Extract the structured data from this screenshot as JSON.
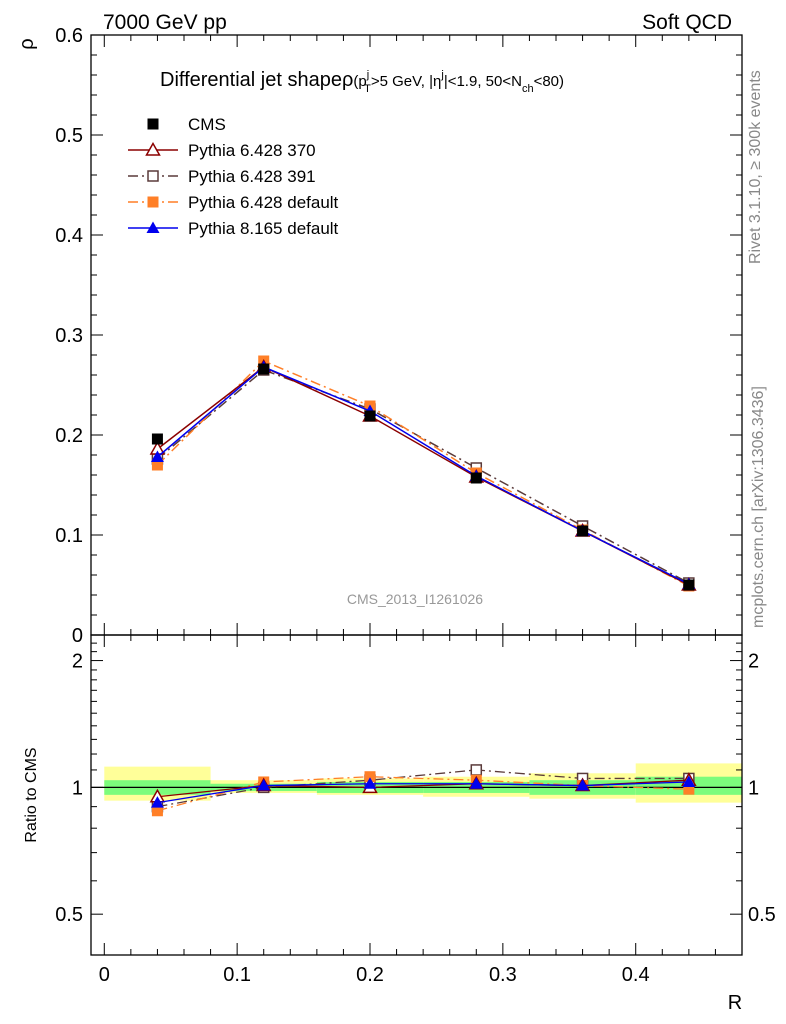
{
  "header": {
    "left": "7000 GeV pp",
    "right": "Soft QCD"
  },
  "side_labels": {
    "rivet": "Rivet 3.1.10, ≥ 300k events",
    "mcplots": "mcplots.cern.ch [arXiv:1306.3436]"
  },
  "watermark": "CMS_2013_I1261026",
  "colors": {
    "cms": "#000000",
    "p370": "#8b0000",
    "p391": "#5a3a3a",
    "p6def": "#ff7f27",
    "p8def": "#0000ee",
    "band_inner": "#7cfc7c",
    "band_outer": "#ffff99"
  },
  "chart_data": [
    {
      "id": "main",
      "type": "line",
      "title": "Differential jet shapeρ",
      "title_cut": {
        "pt": "p",
        "pt_sup": "j",
        "pt_sub": "T",
        "pt_rest": ">5 GeV, |",
        "eta": "η",
        "eta_sup": "j",
        "eta_rest": "|<1.9, 50<N",
        "n_sub": "ch",
        "n_rest": "<80)",
        "open": "("
      },
      "ylabel": "ρ",
      "xlim": [
        -0.01,
        0.48
      ],
      "ylim": [
        0,
        0.6
      ],
      "y_ticks": [
        0,
        0.1,
        0.2,
        0.3,
        0.4,
        0.5,
        0.6
      ],
      "y_tick_labels": [
        "0",
        "0.1",
        "0.2",
        "0.3",
        "0.4",
        "0.5",
        "0.6"
      ],
      "x": [
        0.04,
        0.12,
        0.2,
        0.28,
        0.36,
        0.44
      ],
      "series": [
        {
          "key": "cms",
          "name": "CMS",
          "marker": "square-filled",
          "line": "none",
          "values": [
            0.196,
            0.266,
            0.219,
            0.157,
            0.104,
            0.05
          ]
        },
        {
          "key": "p370",
          "name": "Pythia 6.428 370",
          "marker": "triangle-open",
          "line": "solid",
          "values": [
            0.186,
            0.268,
            0.219,
            0.158,
            0.104,
            0.05
          ]
        },
        {
          "key": "p391",
          "name": "Pythia 6.428 391",
          "marker": "square-open",
          "line": "dashdot",
          "values": [
            0.176,
            0.265,
            0.226,
            0.167,
            0.109,
            0.052
          ]
        },
        {
          "key": "p6def",
          "name": "Pythia 6.428 default",
          "marker": "square-filled",
          "line": "dashdot",
          "values": [
            0.17,
            0.274,
            0.229,
            0.162,
            0.105,
            0.049
          ]
        },
        {
          "key": "p8def",
          "name": "Pythia 8.165 default",
          "marker": "triangle-filled",
          "line": "solid",
          "values": [
            0.178,
            0.268,
            0.224,
            0.159,
            0.104,
            0.051
          ]
        }
      ]
    },
    {
      "id": "ratio",
      "type": "line",
      "ylabel": "Ratio to CMS",
      "xlabel": "R",
      "xlim": [
        -0.01,
        0.48
      ],
      "ylim": [
        0.4,
        2.3
      ],
      "y_tick_labels_left": [
        "0.5",
        "1",
        "2"
      ],
      "y_tick_labels_right": [
        "0.5",
        "1",
        "2"
      ],
      "y_tick_values": [
        0.5,
        1,
        2
      ],
      "x_ticks": [
        0,
        0.1,
        0.2,
        0.3,
        0.4
      ],
      "x_tick_labels": [
        "0",
        "0.1",
        "0.2",
        "0.3",
        "0.4"
      ],
      "x": [
        0.04,
        0.12,
        0.2,
        0.28,
        0.36,
        0.44
      ],
      "bands": [
        {
          "x_from": 0.0,
          "x_to": 0.08,
          "inner": [
            0.96,
            1.04
          ],
          "outer": [
            0.93,
            1.12
          ]
        },
        {
          "x_from": 0.08,
          "x_to": 0.16,
          "inner": [
            0.98,
            1.02
          ],
          "outer": [
            0.97,
            1.04
          ]
        },
        {
          "x_from": 0.16,
          "x_to": 0.24,
          "inner": [
            0.97,
            1.03
          ],
          "outer": [
            0.96,
            1.05
          ]
        },
        {
          "x_from": 0.24,
          "x_to": 0.32,
          "inner": [
            0.97,
            1.03
          ],
          "outer": [
            0.95,
            1.06
          ]
        },
        {
          "x_from": 0.32,
          "x_to": 0.4,
          "inner": [
            0.96,
            1.04
          ],
          "outer": [
            0.94,
            1.08
          ]
        },
        {
          "x_from": 0.4,
          "x_to": 0.48,
          "inner": [
            0.96,
            1.06
          ],
          "outer": [
            0.92,
            1.14
          ]
        }
      ],
      "series": [
        {
          "key": "p370",
          "values": [
            0.95,
            1.01,
            1.0,
            1.02,
            1.01,
            1.04
          ]
        },
        {
          "key": "p391",
          "values": [
            0.9,
            1.0,
            1.04,
            1.1,
            1.05,
            1.05
          ]
        },
        {
          "key": "p6def",
          "values": [
            0.88,
            1.03,
            1.06,
            1.04,
            1.01,
            0.99
          ]
        },
        {
          "key": "p8def",
          "values": [
            0.92,
            1.01,
            1.02,
            1.02,
            1.01,
            1.03
          ]
        }
      ]
    }
  ]
}
